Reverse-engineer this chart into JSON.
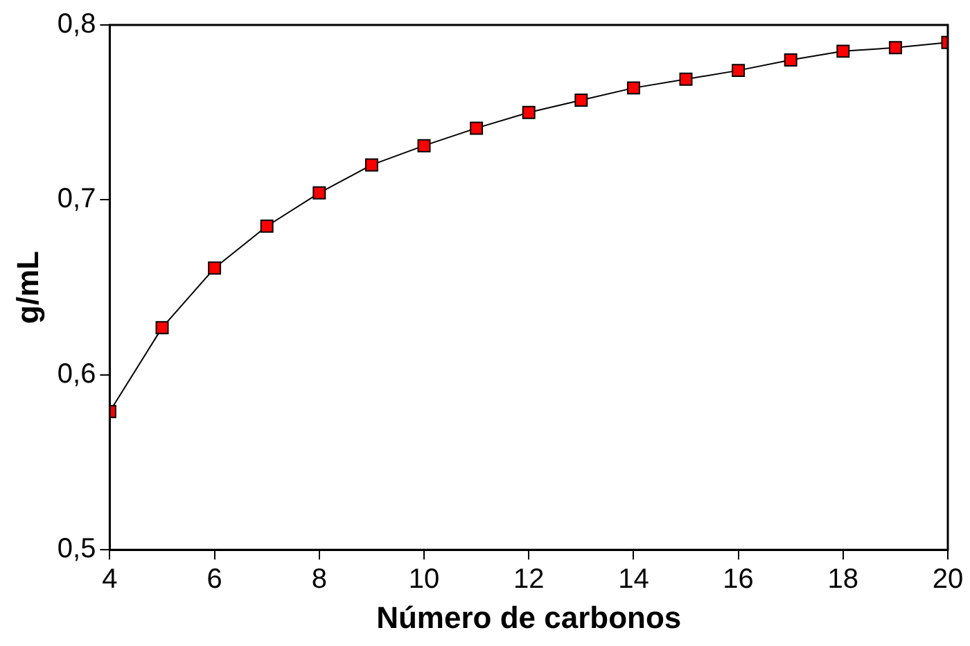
{
  "chart_data": {
    "type": "line",
    "xlabel": "Número de carbonos",
    "ylabel": "g/mL",
    "x": [
      4,
      5,
      6,
      7,
      8,
      9,
      10,
      11,
      12,
      13,
      14,
      15,
      16,
      17,
      18,
      19,
      20
    ],
    "series": [
      {
        "color": "#ff0000",
        "values": [
          0.579,
          0.627,
          0.661,
          0.685,
          0.704,
          0.72,
          0.731,
          0.741,
          0.75,
          0.757,
          0.764,
          0.769,
          0.774,
          0.78,
          0.785,
          0.787,
          0.79
        ]
      }
    ],
    "xlim": [
      4,
      20
    ],
    "xticks": [
      4,
      6,
      8,
      10,
      12,
      14,
      16,
      18,
      20
    ],
    "ylim": [
      0.5,
      0.8
    ],
    "yticks": [
      {
        "value": 0.5,
        "label": "0,5"
      },
      {
        "value": 0.6,
        "label": "0,6"
      },
      {
        "value": 0.7,
        "label": "0,7"
      },
      {
        "value": 0.8,
        "label": "0,8"
      }
    ],
    "grid": false,
    "legend": false,
    "marker": "square",
    "line_style": "solid"
  }
}
